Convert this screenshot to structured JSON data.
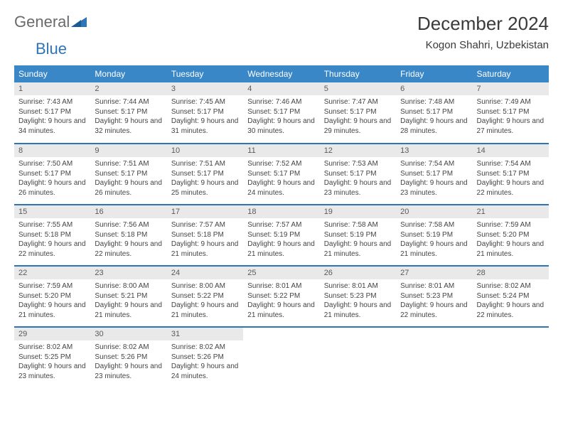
{
  "logo": {
    "part1": "General",
    "part2": "Blue"
  },
  "title": "December 2024",
  "location": "Kogon Shahri, Uzbekistan",
  "colors": {
    "header_bg": "#3a87c8",
    "header_text": "#ffffff",
    "daynum_bg": "#e9e9e9",
    "row_border": "#2f74b5",
    "logo_gray": "#6a6a6a",
    "logo_blue": "#2f74b5"
  },
  "weekdays": [
    "Sunday",
    "Monday",
    "Tuesday",
    "Wednesday",
    "Thursday",
    "Friday",
    "Saturday"
  ],
  "weeks": [
    [
      {
        "n": "1",
        "sunrise": "Sunrise: 7:43 AM",
        "sunset": "Sunset: 5:17 PM",
        "daylight": "Daylight: 9 hours and 34 minutes."
      },
      {
        "n": "2",
        "sunrise": "Sunrise: 7:44 AM",
        "sunset": "Sunset: 5:17 PM",
        "daylight": "Daylight: 9 hours and 32 minutes."
      },
      {
        "n": "3",
        "sunrise": "Sunrise: 7:45 AM",
        "sunset": "Sunset: 5:17 PM",
        "daylight": "Daylight: 9 hours and 31 minutes."
      },
      {
        "n": "4",
        "sunrise": "Sunrise: 7:46 AM",
        "sunset": "Sunset: 5:17 PM",
        "daylight": "Daylight: 9 hours and 30 minutes."
      },
      {
        "n": "5",
        "sunrise": "Sunrise: 7:47 AM",
        "sunset": "Sunset: 5:17 PM",
        "daylight": "Daylight: 9 hours and 29 minutes."
      },
      {
        "n": "6",
        "sunrise": "Sunrise: 7:48 AM",
        "sunset": "Sunset: 5:17 PM",
        "daylight": "Daylight: 9 hours and 28 minutes."
      },
      {
        "n": "7",
        "sunrise": "Sunrise: 7:49 AM",
        "sunset": "Sunset: 5:17 PM",
        "daylight": "Daylight: 9 hours and 27 minutes."
      }
    ],
    [
      {
        "n": "8",
        "sunrise": "Sunrise: 7:50 AM",
        "sunset": "Sunset: 5:17 PM",
        "daylight": "Daylight: 9 hours and 26 minutes."
      },
      {
        "n": "9",
        "sunrise": "Sunrise: 7:51 AM",
        "sunset": "Sunset: 5:17 PM",
        "daylight": "Daylight: 9 hours and 26 minutes."
      },
      {
        "n": "10",
        "sunrise": "Sunrise: 7:51 AM",
        "sunset": "Sunset: 5:17 PM",
        "daylight": "Daylight: 9 hours and 25 minutes."
      },
      {
        "n": "11",
        "sunrise": "Sunrise: 7:52 AM",
        "sunset": "Sunset: 5:17 PM",
        "daylight": "Daylight: 9 hours and 24 minutes."
      },
      {
        "n": "12",
        "sunrise": "Sunrise: 7:53 AM",
        "sunset": "Sunset: 5:17 PM",
        "daylight": "Daylight: 9 hours and 23 minutes."
      },
      {
        "n": "13",
        "sunrise": "Sunrise: 7:54 AM",
        "sunset": "Sunset: 5:17 PM",
        "daylight": "Daylight: 9 hours and 23 minutes."
      },
      {
        "n": "14",
        "sunrise": "Sunrise: 7:54 AM",
        "sunset": "Sunset: 5:17 PM",
        "daylight": "Daylight: 9 hours and 22 minutes."
      }
    ],
    [
      {
        "n": "15",
        "sunrise": "Sunrise: 7:55 AM",
        "sunset": "Sunset: 5:18 PM",
        "daylight": "Daylight: 9 hours and 22 minutes."
      },
      {
        "n": "16",
        "sunrise": "Sunrise: 7:56 AM",
        "sunset": "Sunset: 5:18 PM",
        "daylight": "Daylight: 9 hours and 22 minutes."
      },
      {
        "n": "17",
        "sunrise": "Sunrise: 7:57 AM",
        "sunset": "Sunset: 5:18 PM",
        "daylight": "Daylight: 9 hours and 21 minutes."
      },
      {
        "n": "18",
        "sunrise": "Sunrise: 7:57 AM",
        "sunset": "Sunset: 5:19 PM",
        "daylight": "Daylight: 9 hours and 21 minutes."
      },
      {
        "n": "19",
        "sunrise": "Sunrise: 7:58 AM",
        "sunset": "Sunset: 5:19 PM",
        "daylight": "Daylight: 9 hours and 21 minutes."
      },
      {
        "n": "20",
        "sunrise": "Sunrise: 7:58 AM",
        "sunset": "Sunset: 5:19 PM",
        "daylight": "Daylight: 9 hours and 21 minutes."
      },
      {
        "n": "21",
        "sunrise": "Sunrise: 7:59 AM",
        "sunset": "Sunset: 5:20 PM",
        "daylight": "Daylight: 9 hours and 21 minutes."
      }
    ],
    [
      {
        "n": "22",
        "sunrise": "Sunrise: 7:59 AM",
        "sunset": "Sunset: 5:20 PM",
        "daylight": "Daylight: 9 hours and 21 minutes."
      },
      {
        "n": "23",
        "sunrise": "Sunrise: 8:00 AM",
        "sunset": "Sunset: 5:21 PM",
        "daylight": "Daylight: 9 hours and 21 minutes."
      },
      {
        "n": "24",
        "sunrise": "Sunrise: 8:00 AM",
        "sunset": "Sunset: 5:22 PM",
        "daylight": "Daylight: 9 hours and 21 minutes."
      },
      {
        "n": "25",
        "sunrise": "Sunrise: 8:01 AM",
        "sunset": "Sunset: 5:22 PM",
        "daylight": "Daylight: 9 hours and 21 minutes."
      },
      {
        "n": "26",
        "sunrise": "Sunrise: 8:01 AM",
        "sunset": "Sunset: 5:23 PM",
        "daylight": "Daylight: 9 hours and 21 minutes."
      },
      {
        "n": "27",
        "sunrise": "Sunrise: 8:01 AM",
        "sunset": "Sunset: 5:23 PM",
        "daylight": "Daylight: 9 hours and 22 minutes."
      },
      {
        "n": "28",
        "sunrise": "Sunrise: 8:02 AM",
        "sunset": "Sunset: 5:24 PM",
        "daylight": "Daylight: 9 hours and 22 minutes."
      }
    ],
    [
      {
        "n": "29",
        "sunrise": "Sunrise: 8:02 AM",
        "sunset": "Sunset: 5:25 PM",
        "daylight": "Daylight: 9 hours and 23 minutes."
      },
      {
        "n": "30",
        "sunrise": "Sunrise: 8:02 AM",
        "sunset": "Sunset: 5:26 PM",
        "daylight": "Daylight: 9 hours and 23 minutes."
      },
      {
        "n": "31",
        "sunrise": "Sunrise: 8:02 AM",
        "sunset": "Sunset: 5:26 PM",
        "daylight": "Daylight: 9 hours and 24 minutes."
      },
      {
        "empty": true
      },
      {
        "empty": true
      },
      {
        "empty": true
      },
      {
        "empty": true
      }
    ]
  ]
}
